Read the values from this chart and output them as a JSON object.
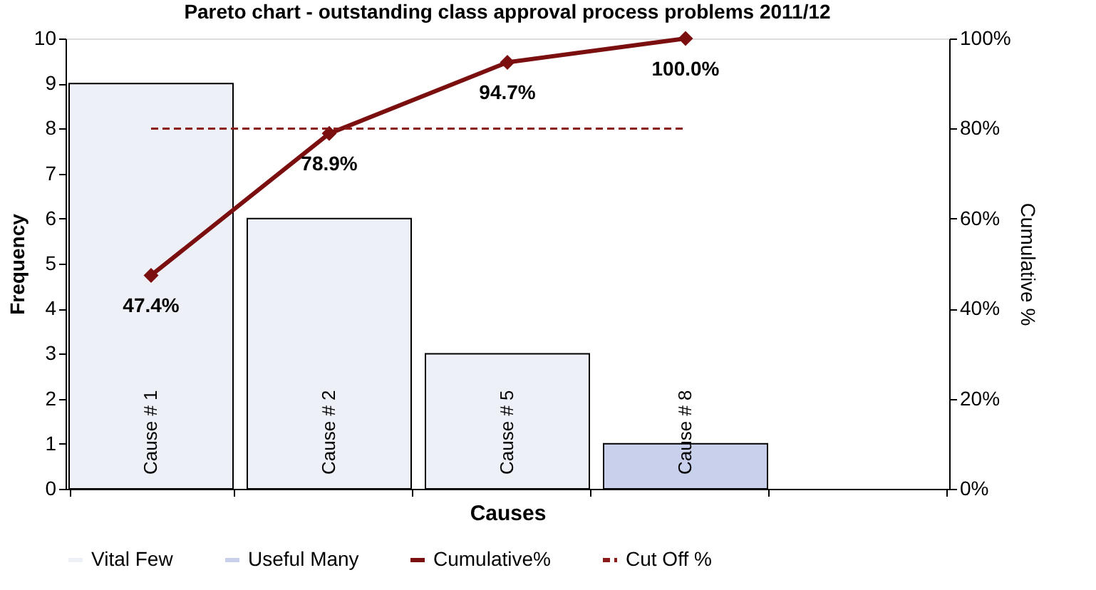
{
  "chart_data": {
    "type": "bar",
    "title": "Pareto chart - outstanding class approval process problems 2011/12",
    "xlabel": "Causes",
    "ylabel": "Frequency",
    "y2label": "Cumulative %",
    "categories": [
      "Cause # 1",
      "Cause # 2",
      "Cause # 5",
      "Cause # 8",
      null
    ],
    "ylim": [
      0,
      10
    ],
    "yticks": [
      0,
      1,
      2,
      3,
      4,
      5,
      6,
      7,
      8,
      9,
      10
    ],
    "y2lim": [
      0,
      100
    ],
    "y2ticks": [
      {
        "value": 0,
        "label": "0%"
      },
      {
        "value": 20,
        "label": "20%"
      },
      {
        "value": 40,
        "label": "40%"
      },
      {
        "value": 60,
        "label": "60%"
      },
      {
        "value": 80,
        "label": "80%"
      },
      {
        "value": 100,
        "label": "100%"
      }
    ],
    "grid": false,
    "legend": "bottom",
    "series": [
      {
        "name": "Vital Few",
        "color": "#eef0f8",
        "values": [
          9,
          6,
          3,
          null,
          null
        ]
      },
      {
        "name": "Useful Many",
        "color": "#c8d0ec",
        "values": [
          null,
          null,
          null,
          1,
          null
        ]
      },
      {
        "name": "Cumulative%",
        "type": "line",
        "axis": "y2",
        "color": "#7b0e0e",
        "marker": "diamond",
        "line_style": "solid",
        "values": [
          47.4,
          78.9,
          94.7,
          100,
          null
        ],
        "value_labels": [
          "47.4%",
          "78.9%",
          "94.7%",
          "100.0%",
          null
        ]
      },
      {
        "name": "Cut Off %",
        "type": "line",
        "axis": "y2",
        "color": "#8b1a1a",
        "marker": "none",
        "line_style": "dashed",
        "values": [
          80,
          80,
          80,
          80,
          null
        ]
      }
    ]
  }
}
